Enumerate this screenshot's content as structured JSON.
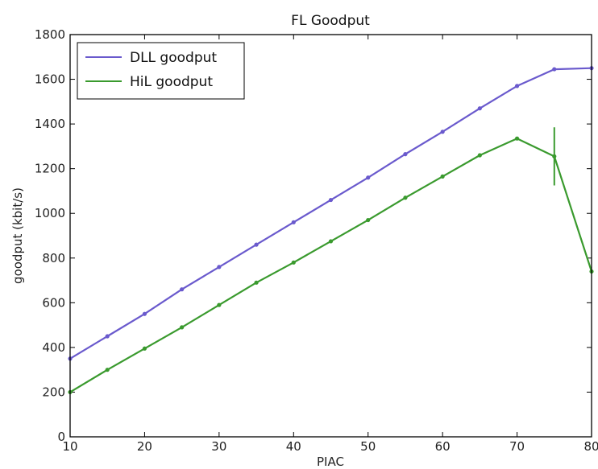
{
  "chart_data": {
    "type": "line",
    "title": "FL Goodput",
    "xlabel": "PIAC",
    "ylabel": "goodput (kbit/s)",
    "xlim": [
      10,
      80
    ],
    "ylim": [
      0,
      1800
    ],
    "xticks": [
      10,
      20,
      30,
      40,
      50,
      60,
      70,
      80
    ],
    "yticks": [
      0,
      200,
      400,
      600,
      800,
      1000,
      1200,
      1400,
      1600,
      1800
    ],
    "grid": false,
    "legend_position": "top-left",
    "series": [
      {
        "name": "DLL goodput",
        "color": "#6a5acd",
        "x": [
          10,
          15,
          20,
          25,
          30,
          35,
          40,
          45,
          50,
          55,
          60,
          65,
          70,
          75,
          80
        ],
        "y": [
          350,
          450,
          550,
          660,
          760,
          860,
          960,
          1060,
          1160,
          1265,
          1365,
          1470,
          1570,
          1645,
          1650
        ]
      },
      {
        "name": "HiL goodput",
        "color": "#3a9a2e",
        "x": [
          10,
          15,
          20,
          25,
          30,
          35,
          40,
          45,
          50,
          55,
          60,
          65,
          70,
          75,
          80
        ],
        "y": [
          200,
          300,
          395,
          490,
          590,
          690,
          780,
          875,
          970,
          1070,
          1165,
          1260,
          1335,
          1255,
          740
        ],
        "error_bars": [
          {
            "x": 75,
            "low": 1125,
            "high": 1385
          }
        ]
      }
    ]
  }
}
